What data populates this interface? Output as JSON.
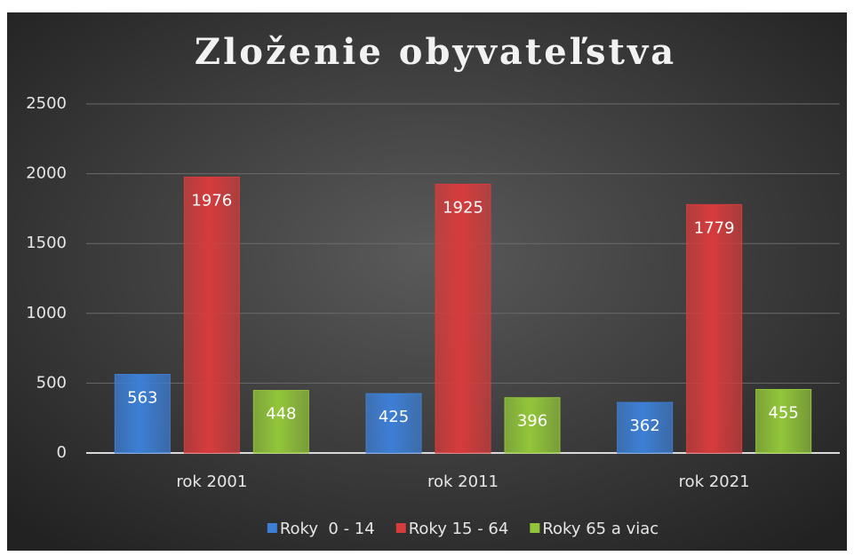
{
  "chart_data": {
    "type": "bar",
    "title": "Zloženie obyvateľstva",
    "categories": [
      "rok 2001",
      "rok 2011",
      "rok 2021"
    ],
    "series": [
      {
        "name": "Roky  0 - 14",
        "color": "#3d7fd6",
        "values": [
          563,
          425,
          362
        ]
      },
      {
        "name": "Roky 15 - 64",
        "color": "#d63c3c",
        "values": [
          1976,
          1925,
          1779
        ]
      },
      {
        "name": "Roky 65 a viac",
        "color": "#92c63a",
        "values": [
          448,
          396,
          455
        ]
      }
    ],
    "ylim": [
      0,
      2500
    ],
    "yticks": [
      0,
      500,
      1000,
      1500,
      2000,
      2500
    ],
    "grid": true,
    "legend": "bottom"
  }
}
